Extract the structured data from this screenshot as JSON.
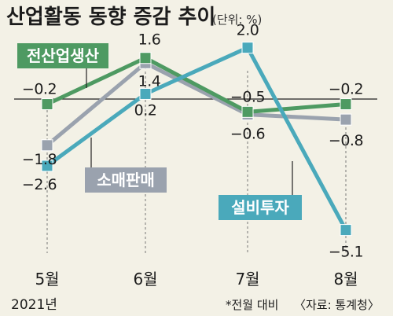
{
  "chart_data": {
    "type": "line",
    "title": "산업활동 동향 증감 추이",
    "unit": "(단위: %)",
    "categories": [
      "5월",
      "6월",
      "7월",
      "8월"
    ],
    "year_label": "2021년",
    "ylim": [
      -6,
      3
    ],
    "baseline": 0,
    "series": [
      {
        "name": "전산업생산",
        "values": [
          -0.2,
          1.6,
          -0.5,
          -0.2
        ],
        "value_labels": [
          "−0.2",
          "1.6",
          "−0.5",
          "−0.2"
        ],
        "color": "#4e9a62"
      },
      {
        "name": "소매판매",
        "values": [
          -1.8,
          1.4,
          -0.6,
          -0.8
        ],
        "value_labels": [
          "−1.8",
          "1.4",
          "−0.6",
          "−0.8"
        ],
        "color": "#9aa2ae"
      },
      {
        "name": "설비투자",
        "values": [
          -2.6,
          0.2,
          2.0,
          -5.1
        ],
        "value_labels": [
          "−2.6",
          "0.2",
          "2.0",
          "−5.1"
        ],
        "color": "#4aa9bb"
      }
    ],
    "note": "*전월 대비",
    "source": "〈자료: 통계청〉"
  }
}
